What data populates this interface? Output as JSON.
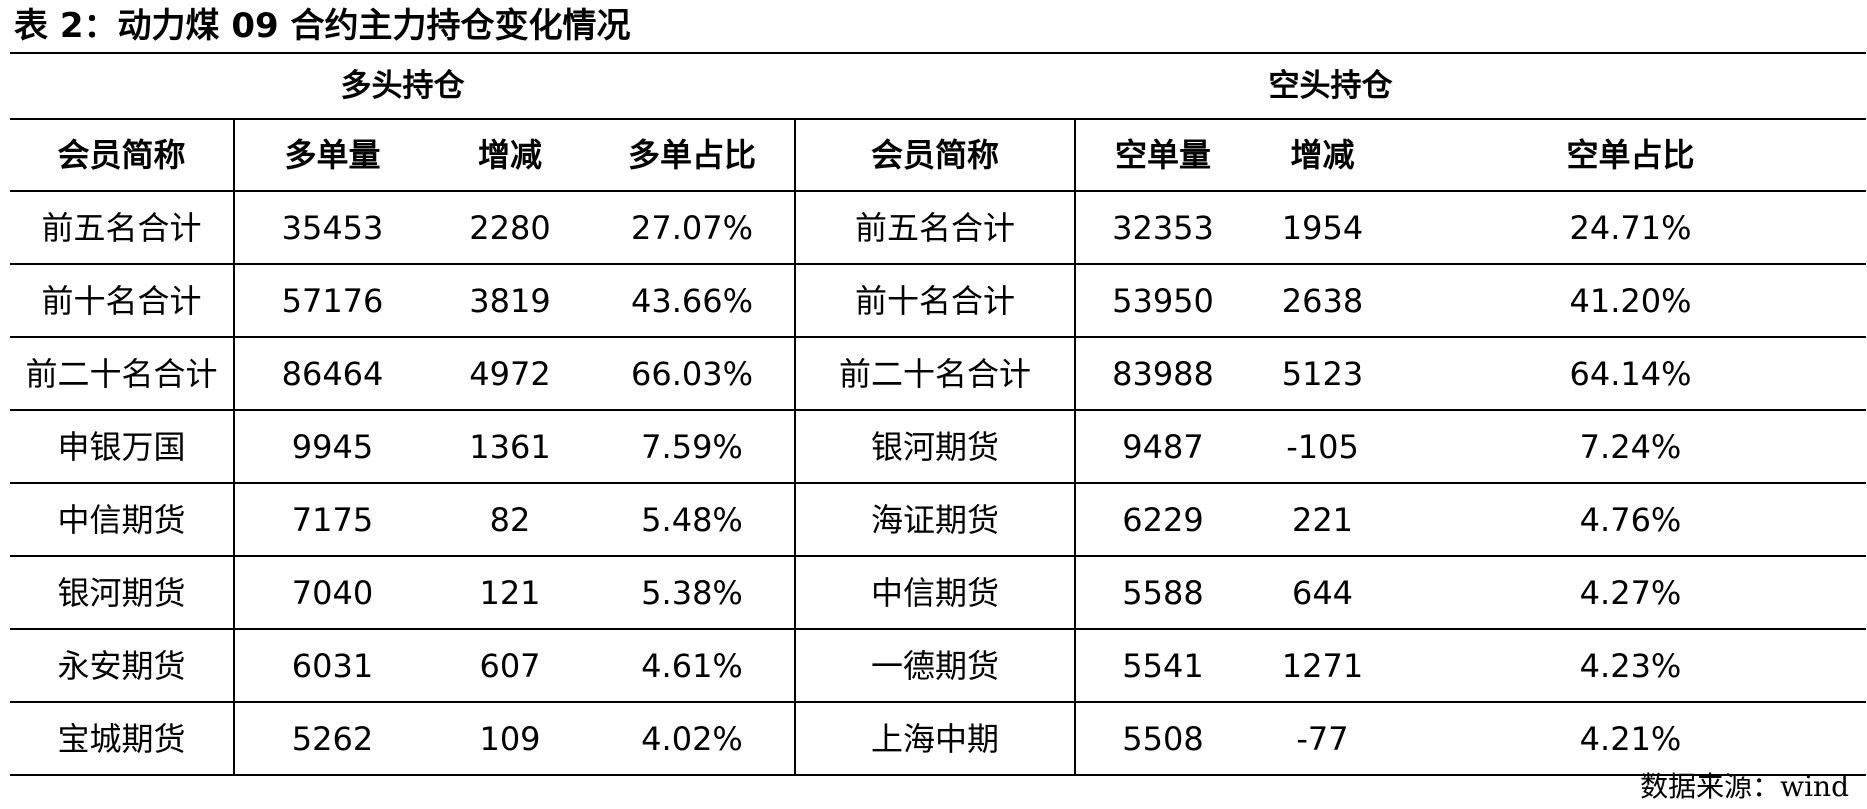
{
  "title": "表 2：动力煤 09 合约主力持仓变化情况",
  "groups": {
    "long": "多头持仓",
    "short": "空头持仓"
  },
  "columns": {
    "long": [
      "会员简称",
      "多单量",
      "增减",
      "多单占比"
    ],
    "short": [
      "会员简称",
      "空单量",
      "增减",
      "空单占比"
    ]
  },
  "rows": [
    {
      "long": [
        "前五名合计",
        "35453",
        "2280",
        "27.07%"
      ],
      "short": [
        "前五名合计",
        "32353",
        "1954",
        "24.71%"
      ]
    },
    {
      "long": [
        "前十名合计",
        "57176",
        "3819",
        "43.66%"
      ],
      "short": [
        "前十名合计",
        "53950",
        "2638",
        "41.20%"
      ]
    },
    {
      "long": [
        "前二十名合计",
        "86464",
        "4972",
        "66.03%"
      ],
      "short": [
        "前二十名合计",
        "83988",
        "5123",
        "64.14%"
      ]
    },
    {
      "long": [
        "申银万国",
        "9945",
        "1361",
        "7.59%"
      ],
      "short": [
        "银河期货",
        "9487",
        "-105",
        "7.24%"
      ]
    },
    {
      "long": [
        "中信期货",
        "7175",
        "82",
        "5.48%"
      ],
      "short": [
        "海证期货",
        "6229",
        "221",
        "4.76%"
      ]
    },
    {
      "long": [
        "银河期货",
        "7040",
        "121",
        "5.38%"
      ],
      "short": [
        "中信期货",
        "5588",
        "644",
        "4.27%"
      ]
    },
    {
      "long": [
        "永安期货",
        "6031",
        "607",
        "4.61%"
      ],
      "short": [
        "一德期货",
        "5541",
        "1271",
        "4.23%"
      ]
    },
    {
      "long": [
        "宝城期货",
        "5262",
        "109",
        "4.02%"
      ],
      "short": [
        "上海中期",
        "5508",
        "-77",
        "4.21%"
      ]
    }
  ],
  "source": "数据来源：wind"
}
